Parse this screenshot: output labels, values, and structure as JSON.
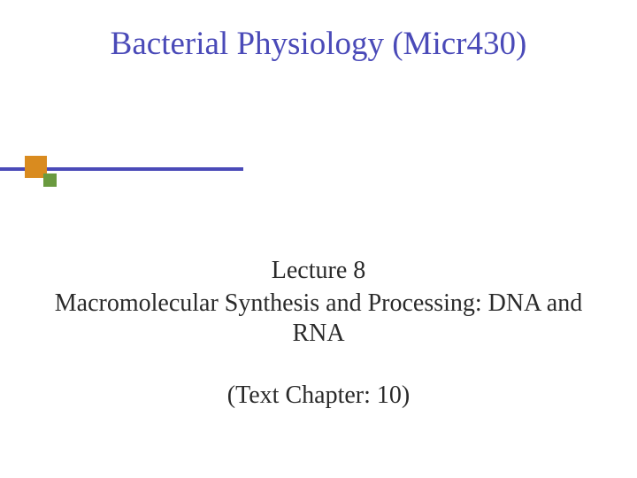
{
  "slide": {
    "title": "Bacterial Physiology (Micr430)",
    "lecture_number": "Lecture 8",
    "lecture_title": "Macromolecular Synthesis and Processing: DNA and RNA",
    "chapter_reference": "(Text Chapter: 10)"
  },
  "styling": {
    "title_color": "#4a4ab8",
    "title_fontsize": 37,
    "body_color": "#2a2a2a",
    "body_fontsize": 28,
    "background_color": "#ffffff",
    "accent_blue": "#4a4ab8",
    "accent_orange": "#d98b1f",
    "accent_green": "#6a9a3f",
    "blue_line_width": 275,
    "blue_line_height": 4,
    "orange_square_size": 25,
    "green_square_size": 15
  }
}
